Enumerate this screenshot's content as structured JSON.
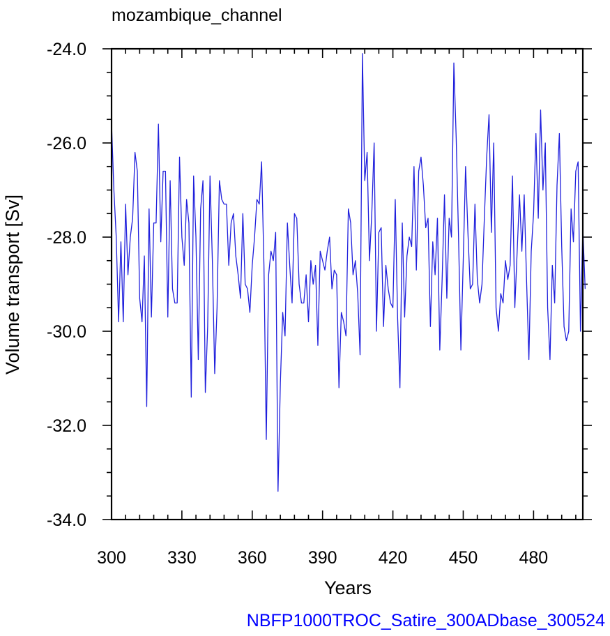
{
  "chart_data": {
    "type": "line",
    "title": "mozambique_channel",
    "xlabel": "Years",
    "ylabel": "Volume transport [Sv]",
    "footer": "NBFP1000TROC_Satire_300ADbase_300524",
    "xlim": [
      300,
      501
    ],
    "ylim": [
      -34.0,
      -24.0
    ],
    "x_ticks": [
      300,
      330,
      360,
      390,
      420,
      450,
      480
    ],
    "x_tick_labels": [
      "300",
      "330",
      "360",
      "390",
      "420",
      "450",
      "480"
    ],
    "y_ticks": [
      -24.0,
      -26.0,
      -28.0,
      -30.0,
      -32.0,
      -34.0
    ],
    "y_tick_labels": [
      "-24.0",
      "-26.0",
      "-28.0",
      "-30.0",
      "-32.0",
      "-34.0"
    ],
    "grid": false,
    "line_color": "#1f1fdc",
    "series": [
      {
        "x_start": 300,
        "x_step": 1,
        "values": [
          -25.6,
          -27.0,
          -28.0,
          -29.8,
          -28.1,
          -29.8,
          -27.3,
          -28.8,
          -28.0,
          -27.6,
          -26.2,
          -26.6,
          -29.3,
          -29.8,
          -28.4,
          -31.6,
          -27.4,
          -29.7,
          -27.7,
          -27.7,
          -25.6,
          -28.1,
          -26.6,
          -26.6,
          -29.7,
          -26.8,
          -29.1,
          -29.4,
          -29.4,
          -26.3,
          -28.0,
          -28.6,
          -27.2,
          -27.7,
          -31.4,
          -26.7,
          -28.0,
          -30.6,
          -27.4,
          -26.8,
          -31.3,
          -29.9,
          -26.7,
          -28.5,
          -30.9,
          -29.5,
          -26.8,
          -27.2,
          -27.3,
          -27.3,
          -28.6,
          -27.7,
          -27.5,
          -28.4,
          -28.8,
          -29.3,
          -27.5,
          -29.0,
          -29.1,
          -29.6,
          -28.6,
          -28.0,
          -27.2,
          -27.3,
          -26.4,
          -28.6,
          -32.3,
          -28.8,
          -28.3,
          -28.5,
          -27.9,
          -33.4,
          -31.1,
          -29.6,
          -30.1,
          -27.7,
          -28.6,
          -29.4,
          -27.5,
          -27.6,
          -29.0,
          -29.4,
          -29.4,
          -28.8,
          -29.8,
          -28.5,
          -29.0,
          -28.6,
          -30.3,
          -28.3,
          -28.5,
          -28.7,
          -28.3,
          -28.0,
          -29.1,
          -28.7,
          -28.8,
          -31.2,
          -29.6,
          -29.8,
          -30.1,
          -27.4,
          -27.7,
          -28.8,
          -28.5,
          -29.2,
          -30.5,
          -24.1,
          -26.8,
          -26.2,
          -28.5,
          -27.5,
          -26.0,
          -30.0,
          -27.9,
          -27.8,
          -29.9,
          -28.6,
          -29.1,
          -29.4,
          -29.5,
          -27.2,
          -29.7,
          -31.2,
          -27.7,
          -29.7,
          -28.4,
          -28.0,
          -28.2,
          -26.5,
          -28.7,
          -26.6,
          -26.3,
          -26.9,
          -27.8,
          -27.6,
          -29.9,
          -28.1,
          -28.8,
          -27.6,
          -30.4,
          -28.9,
          -27.1,
          -29.3,
          -27.6,
          -28.0,
          -24.3,
          -25.9,
          -28.0,
          -30.4,
          -28.5,
          -26.5,
          -27.9,
          -29.1,
          -29.0,
          -27.3,
          -28.9,
          -29.4,
          -29.0,
          -27.6,
          -26.3,
          -25.4,
          -27.9,
          -26.0,
          -29.5,
          -30.0,
          -29.2,
          -29.4,
          -28.5,
          -28.9,
          -28.6,
          -26.7,
          -29.5,
          -28.3,
          -27.1,
          -28.3,
          -27.1,
          -28.9,
          -30.6,
          -28.3,
          -27.5,
          -25.8,
          -27.6,
          -25.3,
          -27.0,
          -26.0,
          -29.5,
          -30.6,
          -28.6,
          -29.4,
          -26.9,
          -25.8,
          -28.2,
          -29.9,
          -30.2,
          -30.0,
          -27.4,
          -28.1,
          -26.6,
          -26.4,
          -30.0,
          -27.8,
          -29.1
        ]
      }
    ]
  }
}
